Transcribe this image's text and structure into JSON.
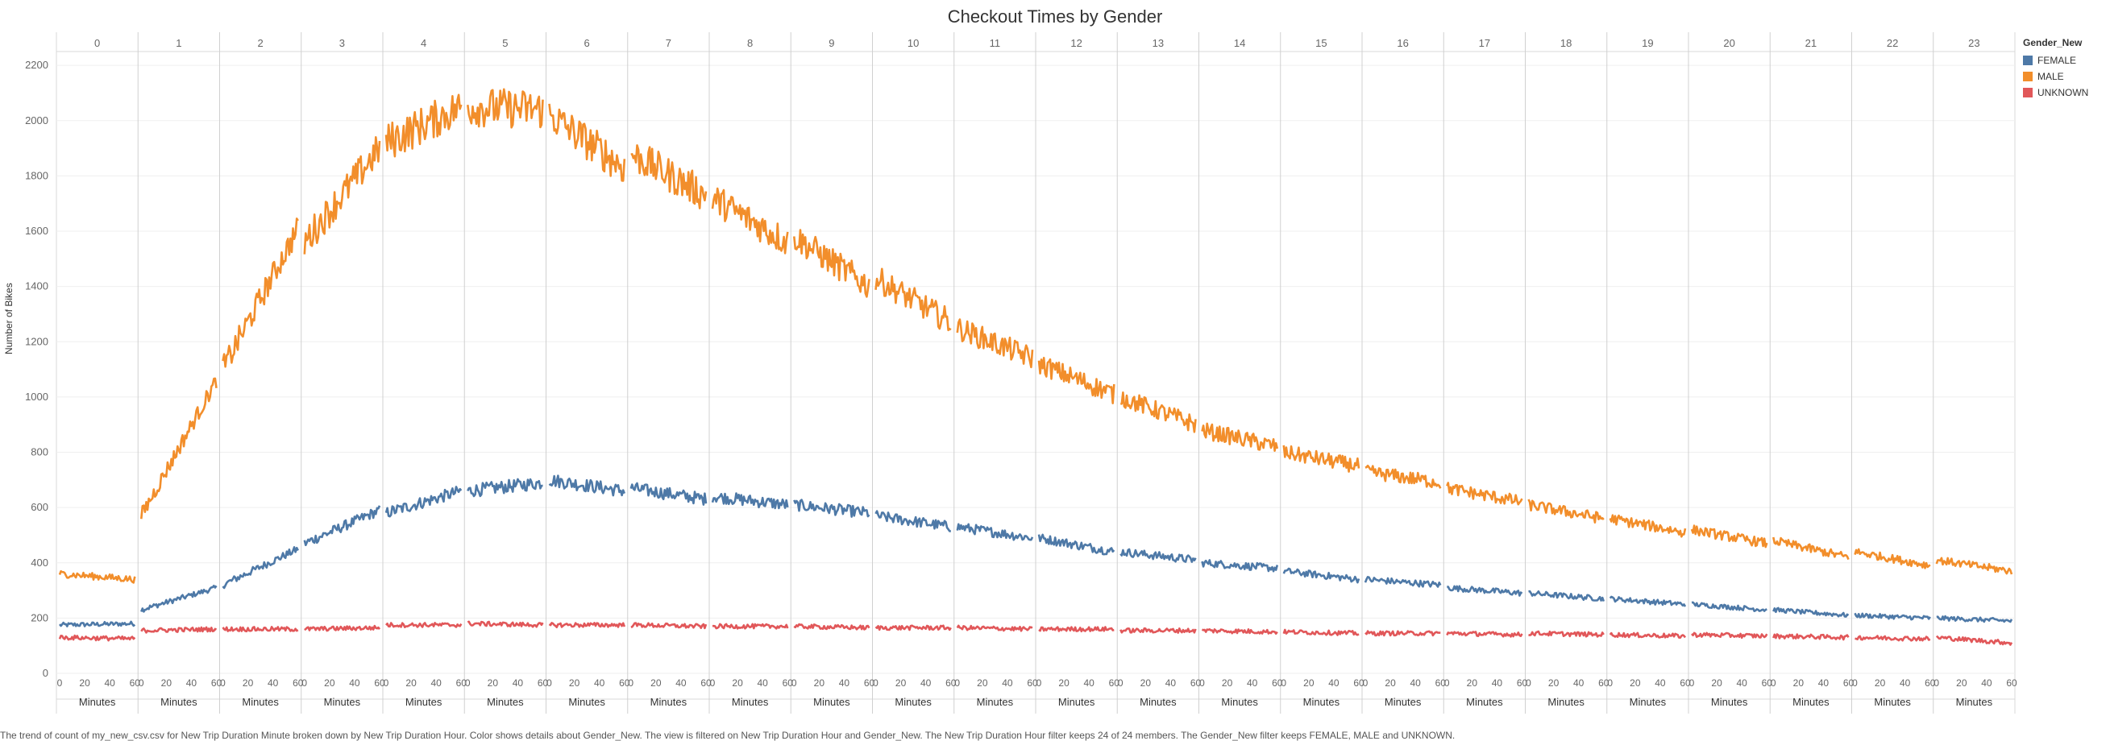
{
  "chart_data": {
    "type": "line",
    "title": "Checkout Times by Gender",
    "ylabel": "Number of Bikes",
    "xlabel": "Minutes",
    "hours": [
      "0",
      "1",
      "2",
      "3",
      "4",
      "5",
      "6",
      "7",
      "8",
      "9",
      "10",
      "11",
      "12",
      "13",
      "14",
      "15",
      "16",
      "17",
      "18",
      "19",
      "20",
      "21",
      "22",
      "23"
    ],
    "minute_ticks": [
      "0",
      "20",
      "40",
      "60"
    ],
    "ylim": [
      0,
      2250
    ],
    "yticks": [
      "0",
      "200",
      "400",
      "600",
      "800",
      "1000",
      "1200",
      "1400",
      "1600",
      "1800",
      "2000",
      "2200"
    ],
    "legend_title": "Gender_New",
    "legend_position": "top-right",
    "series": [
      {
        "name": "FEMALE",
        "color": "#4e79a7",
        "start": [
          175,
          230,
          320,
          470,
          580,
          660,
          700,
          670,
          640,
          610,
          570,
          530,
          490,
          440,
          400,
          370,
          340,
          310,
          290,
          270,
          250,
          230,
          210,
          200
        ],
        "end": [
          180,
          310,
          450,
          590,
          660,
          690,
          660,
          630,
          610,
          580,
          530,
          490,
          440,
          410,
          380,
          340,
          320,
          290,
          270,
          250,
          230,
          210,
          200,
          190
        ]
      },
      {
        "name": "MALE",
        "color": "#f28e2b",
        "start": [
          360,
          570,
          1100,
          1560,
          1920,
          2050,
          2020,
          1880,
          1720,
          1580,
          1430,
          1250,
          1120,
          1000,
          880,
          800,
          730,
          670,
          610,
          560,
          520,
          480,
          440,
          410
        ],
        "end": [
          340,
          1060,
          1610,
          1900,
          2050,
          2040,
          1830,
          1730,
          1560,
          1400,
          1270,
          1140,
          1010,
          900,
          820,
          750,
          690,
          620,
          560,
          510,
          470,
          420,
          390,
          370
        ]
      },
      {
        "name": "UNKNOWN",
        "color": "#e15759",
        "start": [
          130,
          155,
          160,
          160,
          175,
          180,
          175,
          175,
          170,
          170,
          165,
          165,
          160,
          155,
          155,
          150,
          145,
          145,
          145,
          140,
          140,
          135,
          130,
          130
        ],
        "end": [
          125,
          160,
          160,
          165,
          175,
          175,
          175,
          170,
          170,
          165,
          165,
          160,
          160,
          155,
          150,
          145,
          145,
          140,
          140,
          135,
          135,
          130,
          125,
          110
        ]
      }
    ]
  },
  "caption": "The trend of count of my_new_csv.csv for New Trip Duration Minute broken down by New Trip Duration Hour.  Color shows details about Gender_New. The view is filtered on New Trip Duration Hour and Gender_New. The New Trip Duration Hour filter keeps 24 of 24 members. The Gender_New filter keeps FEMALE, MALE and UNKNOWN."
}
